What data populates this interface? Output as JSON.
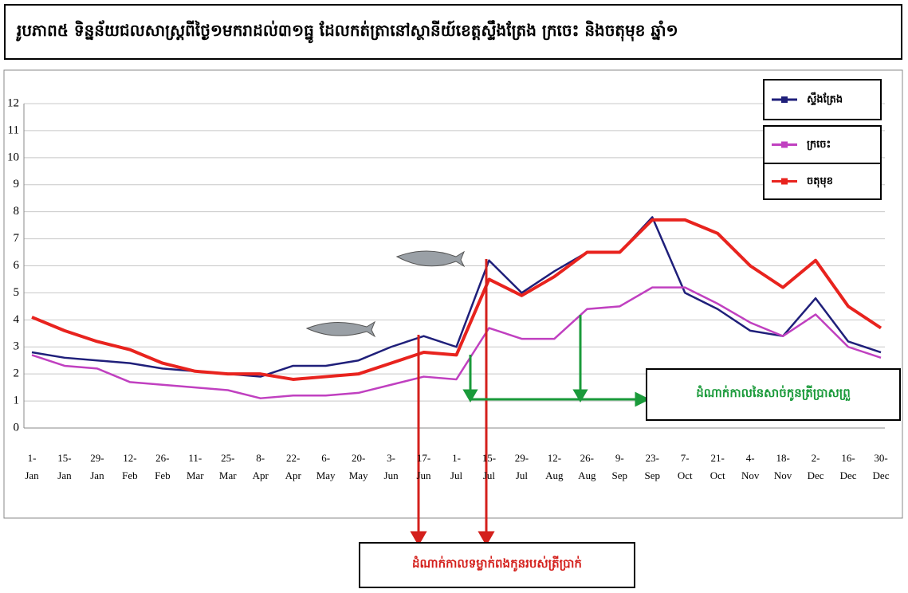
{
  "chart_data": {
    "type": "line",
    "title": "រូបភាព៥ ទិន្នន័យជលសាស្ត្រពីថ្ងៃ១មករាដល់៣១ធ្នូ ដែលកត់ត្រានៅស្ថានីយ៍ខេត្តស្ទឹងត្រែង ក្រចេះ និងចតុមុខ ឆ្នាំ១",
    "annotations": [
      "ដំណាក់កាលនៃសាច់កូនត្រីប្រាសព្រួ",
      "ដំណាក់កាលទម្លាក់ពងកូនរបស់ត្រីប្រាក់"
    ],
    "categories": [
      "1- Jan",
      "15- Jan",
      "29- Jan",
      "12- Feb",
      "26- Feb",
      "11- Mar",
      "25- Mar",
      "8- Apr",
      "22- Apr",
      "6- May",
      "20- May",
      "3- Jun",
      "17- Jun",
      "1- Jul",
      "15- Jul",
      "29- Jul",
      "12- Aug",
      "26- Aug",
      "9- Sep",
      "23- Sep",
      "7- Oct",
      "21- Oct",
      "4- Nov",
      "18- Nov",
      "2- Dec",
      "16- Dec",
      "30- Dec"
    ],
    "series": [
      {
        "name": "ស្ទឹងត្រែង",
        "color": "#1f1f7a",
        "values": [
          2.8,
          2.6,
          2.5,
          2.4,
          2.2,
          2.1,
          2.0,
          1.9,
          2.3,
          2.3,
          2.5,
          3.0,
          3.4,
          3.0,
          6.2,
          5.0,
          5.8,
          6.5,
          6.5,
          7.8,
          5.0,
          4.4,
          3.6,
          3.4,
          4.8,
          3.2,
          2.8
        ]
      },
      {
        "name": "ក្រចេះ",
        "color": "#c040c0",
        "values": [
          2.7,
          2.3,
          2.2,
          1.7,
          1.6,
          1.5,
          1.4,
          1.1,
          1.2,
          1.2,
          1.3,
          1.6,
          1.9,
          1.8,
          3.7,
          3.3,
          3.3,
          4.4,
          4.5,
          5.2,
          5.2,
          4.6,
          3.9,
          3.4,
          4.2,
          3.0,
          2.6
        ]
      },
      {
        "name": "ចតុមុខ",
        "color": "#e8231e",
        "values": [
          4.1,
          3.6,
          3.2,
          2.9,
          2.4,
          2.1,
          2.0,
          2.0,
          1.8,
          1.9,
          2.0,
          2.4,
          2.8,
          2.7,
          5.5,
          4.9,
          5.6,
          6.5,
          6.5,
          7.7,
          7.7,
          7.2,
          6.0,
          5.2,
          6.2,
          4.5,
          3.7
        ]
      }
    ],
    "ylim": [
      0,
      12
    ],
    "yticks": [
      0,
      1,
      2,
      3,
      4,
      5,
      6,
      7,
      8,
      9,
      10,
      11,
      12
    ],
    "grid": true
  }
}
